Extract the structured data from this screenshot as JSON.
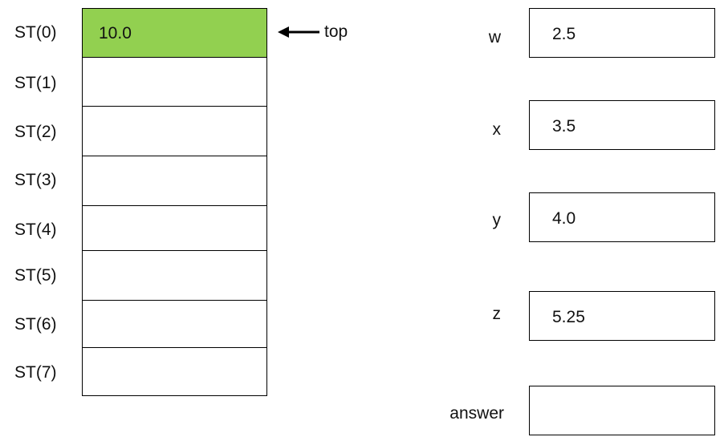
{
  "stack": {
    "registers": [
      {
        "label": "ST(0)",
        "value": "10.0"
      },
      {
        "label": "ST(1)",
        "value": ""
      },
      {
        "label": "ST(2)",
        "value": ""
      },
      {
        "label": "ST(3)",
        "value": ""
      },
      {
        "label": "ST(4)",
        "value": ""
      },
      {
        "label": "ST(5)",
        "value": ""
      },
      {
        "label": "ST(6)",
        "value": ""
      },
      {
        "label": "ST(7)",
        "value": ""
      }
    ],
    "top_pointer_label": "top",
    "top_pointer_icon": "left-arrow-icon",
    "top_cell_color": "#92d050"
  },
  "variables": [
    {
      "name": "w",
      "value": "2.5"
    },
    {
      "name": "x",
      "value": "3.5"
    },
    {
      "name": "y",
      "value": "4.0"
    },
    {
      "name": "z",
      "value": "5.25"
    },
    {
      "name": "answer",
      "value": ""
    }
  ]
}
